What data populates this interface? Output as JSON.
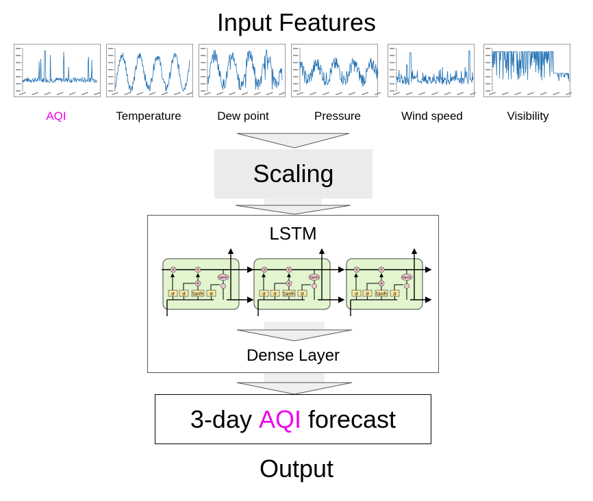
{
  "title": "Input Features",
  "features": [
    {
      "label": "AQI",
      "color": "#ee00ee"
    },
    {
      "label": "Temperature",
      "color": "#000000"
    },
    {
      "label": "Dew point",
      "color": "#000000"
    },
    {
      "label": "Pressure",
      "color": "#000000"
    },
    {
      "label": "Wind speed",
      "color": "#000000"
    },
    {
      "label": "Visibility",
      "color": "#000000"
    }
  ],
  "scaling_label": "Scaling",
  "lstm_label": "LSTM",
  "dense_label": "Dense Layer",
  "forecast": {
    "prefix": "3-day ",
    "highlight": "AQI",
    "suffix": " forecast",
    "highlight_color": "#ee00ee"
  },
  "output_label": "Output",
  "colors": {
    "series": "#1f6fb2",
    "cell_fill": "#e2f5cf",
    "gate_fill": "#f6e7a0",
    "op_fill": "#f4c6cf",
    "arrow_fill": "#efefef"
  },
  "gate_labels": [
    "σ",
    "σ",
    "tanh",
    "σ"
  ],
  "op_labels": [
    "×",
    "+",
    "×",
    "tanh"
  ]
}
